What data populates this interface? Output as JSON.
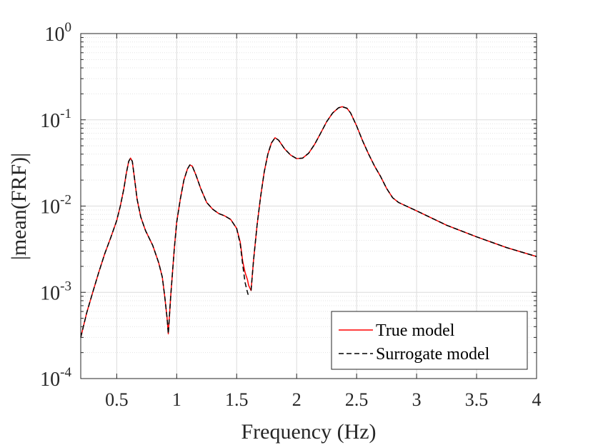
{
  "chart_data": {
    "type": "line",
    "title": "",
    "xlabel": "Frequency (Hz)",
    "ylabel": "|mean(FRF)|",
    "xlim": [
      0.2,
      4
    ],
    "ylim": [
      0.0001,
      1
    ],
    "yscale": "log",
    "grid": true,
    "legend_position": "bottom-right",
    "x_ticks": [
      {
        "value": 0.5,
        "label": "0.5"
      },
      {
        "value": 1,
        "label": "1"
      },
      {
        "value": 1.5,
        "label": "1.5"
      },
      {
        "value": 2,
        "label": "2"
      },
      {
        "value": 2.5,
        "label": "2.5"
      },
      {
        "value": 3,
        "label": "3"
      },
      {
        "value": 3.5,
        "label": "3.5"
      },
      {
        "value": 4,
        "label": "4"
      }
    ],
    "y_ticks": [
      {
        "value": 0.0001,
        "base": "10",
        "exp": "-4"
      },
      {
        "value": 0.001,
        "base": "10",
        "exp": "-3"
      },
      {
        "value": 0.01,
        "base": "10",
        "exp": "-2"
      },
      {
        "value": 0.1,
        "base": "10",
        "exp": "-1"
      },
      {
        "value": 1,
        "base": "10",
        "exp": "0"
      }
    ],
    "series": [
      {
        "name": "True model",
        "color": "#ff0000",
        "dash": "solid",
        "points": [
          [
            0.2,
            0.0003
          ],
          [
            0.25,
            0.00058
          ],
          [
            0.3,
            0.001
          ],
          [
            0.35,
            0.0017
          ],
          [
            0.4,
            0.0028
          ],
          [
            0.45,
            0.0043
          ],
          [
            0.5,
            0.0068
          ],
          [
            0.53,
            0.01
          ],
          [
            0.56,
            0.016
          ],
          [
            0.58,
            0.024
          ],
          [
            0.6,
            0.033
          ],
          [
            0.615,
            0.036
          ],
          [
            0.63,
            0.033
          ],
          [
            0.65,
            0.02
          ],
          [
            0.67,
            0.012
          ],
          [
            0.7,
            0.0075
          ],
          [
            0.74,
            0.0052
          ],
          [
            0.8,
            0.0035
          ],
          [
            0.85,
            0.0022
          ],
          [
            0.88,
            0.0015
          ],
          [
            0.9,
            0.0009
          ],
          [
            0.92,
            0.0005
          ],
          [
            0.93,
            0.00033
          ],
          [
            0.95,
            0.0009
          ],
          [
            0.98,
            0.0032
          ],
          [
            1.0,
            0.0065
          ],
          [
            1.03,
            0.012
          ],
          [
            1.06,
            0.02
          ],
          [
            1.09,
            0.027
          ],
          [
            1.11,
            0.03
          ],
          [
            1.13,
            0.029
          ],
          [
            1.16,
            0.023
          ],
          [
            1.2,
            0.016
          ],
          [
            1.25,
            0.011
          ],
          [
            1.3,
            0.0092
          ],
          [
            1.35,
            0.0082
          ],
          [
            1.4,
            0.0077
          ],
          [
            1.45,
            0.007
          ],
          [
            1.5,
            0.0055
          ],
          [
            1.53,
            0.0038
          ],
          [
            1.55,
            0.0023
          ],
          [
            1.57,
            0.0017
          ],
          [
            1.59,
            0.0014
          ],
          [
            1.6,
            0.0012
          ],
          [
            1.62,
            0.00105
          ],
          [
            1.64,
            0.0023
          ],
          [
            1.67,
            0.006
          ],
          [
            1.7,
            0.013
          ],
          [
            1.73,
            0.025
          ],
          [
            1.76,
            0.04
          ],
          [
            1.79,
            0.054
          ],
          [
            1.82,
            0.062
          ],
          [
            1.85,
            0.058
          ],
          [
            1.9,
            0.046
          ],
          [
            1.95,
            0.039
          ],
          [
            2.0,
            0.0355
          ],
          [
            2.05,
            0.036
          ],
          [
            2.1,
            0.041
          ],
          [
            2.15,
            0.052
          ],
          [
            2.2,
            0.07
          ],
          [
            2.25,
            0.095
          ],
          [
            2.3,
            0.12
          ],
          [
            2.35,
            0.138
          ],
          [
            2.38,
            0.142
          ],
          [
            2.42,
            0.136
          ],
          [
            2.45,
            0.12
          ],
          [
            2.5,
            0.085
          ],
          [
            2.55,
            0.057
          ],
          [
            2.6,
            0.04
          ],
          [
            2.65,
            0.029
          ],
          [
            2.7,
            0.022
          ],
          [
            2.75,
            0.016
          ],
          [
            2.8,
            0.0125
          ],
          [
            2.85,
            0.011
          ],
          [
            3.0,
            0.0088
          ],
          [
            3.25,
            0.006
          ],
          [
            3.5,
            0.0044
          ],
          [
            3.75,
            0.0033
          ],
          [
            4.0,
            0.0026
          ]
        ]
      },
      {
        "name": "Surrogate model",
        "color": "#000000",
        "dash": "dashed",
        "points": [
          [
            0.2,
            0.0003
          ],
          [
            0.25,
            0.00058
          ],
          [
            0.3,
            0.001
          ],
          [
            0.35,
            0.0017
          ],
          [
            0.4,
            0.0028
          ],
          [
            0.45,
            0.0043
          ],
          [
            0.5,
            0.0068
          ],
          [
            0.53,
            0.01
          ],
          [
            0.56,
            0.016
          ],
          [
            0.58,
            0.024
          ],
          [
            0.6,
            0.033
          ],
          [
            0.615,
            0.036
          ],
          [
            0.63,
            0.033
          ],
          [
            0.65,
            0.02
          ],
          [
            0.67,
            0.012
          ],
          [
            0.7,
            0.0075
          ],
          [
            0.74,
            0.0052
          ],
          [
            0.8,
            0.0035
          ],
          [
            0.85,
            0.0022
          ],
          [
            0.88,
            0.0015
          ],
          [
            0.9,
            0.0009
          ],
          [
            0.92,
            0.0005
          ],
          [
            0.93,
            0.00033
          ],
          [
            0.95,
            0.0009
          ],
          [
            0.98,
            0.0032
          ],
          [
            1.0,
            0.0065
          ],
          [
            1.03,
            0.012
          ],
          [
            1.06,
            0.02
          ],
          [
            1.09,
            0.027
          ],
          [
            1.11,
            0.03
          ],
          [
            1.13,
            0.029
          ],
          [
            1.16,
            0.023
          ],
          [
            1.2,
            0.016
          ],
          [
            1.25,
            0.011
          ],
          [
            1.3,
            0.0092
          ],
          [
            1.35,
            0.0082
          ],
          [
            1.4,
            0.0077
          ],
          [
            1.45,
            0.007
          ],
          [
            1.5,
            0.0055
          ],
          [
            1.53,
            0.0036
          ],
          [
            1.55,
            0.0021
          ],
          [
            1.57,
            0.0013
          ],
          [
            1.59,
            0.001
          ],
          [
            1.6,
            0.0009
          ],
          [
            1.605,
            0.00088
          ]
        ]
      },
      {
        "name": "Surrogate model",
        "color": "#000000",
        "dash": "dashed",
        "points": [
          [
            1.62,
            0.00105
          ],
          [
            1.64,
            0.0023
          ],
          [
            1.67,
            0.006
          ],
          [
            1.7,
            0.013
          ],
          [
            1.73,
            0.025
          ],
          [
            1.76,
            0.04
          ],
          [
            1.79,
            0.054
          ],
          [
            1.82,
            0.062
          ],
          [
            1.85,
            0.058
          ],
          [
            1.9,
            0.046
          ],
          [
            1.95,
            0.039
          ],
          [
            2.0,
            0.0355
          ],
          [
            2.05,
            0.036
          ],
          [
            2.1,
            0.041
          ],
          [
            2.15,
            0.052
          ],
          [
            2.2,
            0.07
          ],
          [
            2.25,
            0.095
          ],
          [
            2.3,
            0.12
          ],
          [
            2.35,
            0.138
          ],
          [
            2.38,
            0.142
          ],
          [
            2.42,
            0.136
          ],
          [
            2.45,
            0.12
          ],
          [
            2.5,
            0.085
          ],
          [
            2.55,
            0.057
          ],
          [
            2.6,
            0.04
          ],
          [
            2.65,
            0.029
          ],
          [
            2.7,
            0.022
          ],
          [
            2.75,
            0.016
          ],
          [
            2.8,
            0.0125
          ],
          [
            2.85,
            0.011
          ],
          [
            3.0,
            0.0088
          ],
          [
            3.25,
            0.006
          ],
          [
            3.5,
            0.0044
          ],
          [
            3.75,
            0.0033
          ],
          [
            4.0,
            0.0026
          ]
        ]
      }
    ],
    "legend": [
      {
        "label": "True model",
        "color": "#ff0000",
        "dash": "solid"
      },
      {
        "label": "Surrogate model",
        "color": "#000000",
        "dash": "dashed"
      }
    ]
  }
}
